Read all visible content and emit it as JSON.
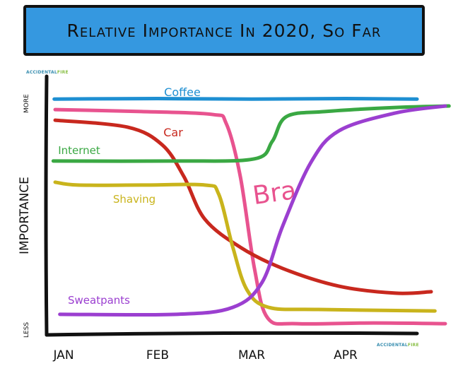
{
  "watermark": {
    "part1": "ACCIDENTAL",
    "part2": "FIRE"
  },
  "chart_data": {
    "type": "line",
    "title": "Relative Importance In 2020, So Far",
    "xlabel": "",
    "ylabel": "Importance",
    "y_tick_labels": {
      "top": "More",
      "bottom": "Less"
    },
    "x_ticks": [
      {
        "label": "Jan",
        "x": 0
      },
      {
        "label": "Feb",
        "x": 1
      },
      {
        "label": "Mar",
        "x": 2
      },
      {
        "label": "Apr",
        "x": 3
      }
    ],
    "xlim": [
      -0.2,
      4.2
    ],
    "ylim": [
      0,
      10
    ],
    "grid": false,
    "legend": "none (inline labels)",
    "series": [
      {
        "name": "Coffee",
        "color": "#1e8fd2",
        "points": [
          [
            -0.1,
            9.7
          ],
          [
            1,
            9.72
          ],
          [
            2,
            9.7
          ],
          [
            3,
            9.72
          ],
          [
            3.76,
            9.7
          ]
        ]
      },
      {
        "name": "Bra",
        "color": "#e8538f",
        "points": [
          [
            -0.09,
            9.26
          ],
          [
            0.83,
            9.18
          ],
          [
            1.58,
            9.06
          ],
          [
            1.73,
            8.68
          ],
          [
            1.88,
            6.47
          ],
          [
            2.03,
            2.65
          ],
          [
            2.17,
            0.59
          ],
          [
            2.48,
            0.35
          ],
          [
            3.3,
            0.38
          ],
          [
            4.06,
            0.35
          ]
        ]
      },
      {
        "name": "Car",
        "color": "#c8281e",
        "points": [
          [
            -0.09,
            8.82
          ],
          [
            0.68,
            8.53
          ],
          [
            1.05,
            7.79
          ],
          [
            1.28,
            6.47
          ],
          [
            1.5,
            4.71
          ],
          [
            1.88,
            3.53
          ],
          [
            2.33,
            2.65
          ],
          [
            2.93,
            1.91
          ],
          [
            3.53,
            1.62
          ],
          [
            3.91,
            1.68
          ]
        ]
      },
      {
        "name": "Internet",
        "color": "#3aa843",
        "points": [
          [
            -0.11,
            7.12
          ],
          [
            1.2,
            7.12
          ],
          [
            2.03,
            7.21
          ],
          [
            2.22,
            7.94
          ],
          [
            2.37,
            8.97
          ],
          [
            2.78,
            9.18
          ],
          [
            3.53,
            9.35
          ],
          [
            4.1,
            9.41
          ]
        ]
      },
      {
        "name": "Shaving",
        "color": "#c9b41c",
        "points": [
          [
            -0.09,
            6.24
          ],
          [
            0.15,
            6.12
          ],
          [
            0.83,
            6.12
          ],
          [
            1.5,
            6.12
          ],
          [
            1.65,
            5.74
          ],
          [
            1.8,
            3.53
          ],
          [
            1.95,
            1.76
          ],
          [
            2.18,
            1.03
          ],
          [
            2.71,
            0.94
          ],
          [
            3.95,
            0.88
          ]
        ]
      },
      {
        "name": "Sweatpants",
        "color": "#9b3fd0",
        "points": [
          [
            -0.04,
            0.74
          ],
          [
            1.2,
            0.74
          ],
          [
            1.8,
            1.03
          ],
          [
            2.11,
            2.06
          ],
          [
            2.33,
            4.41
          ],
          [
            2.63,
            7.06
          ],
          [
            2.93,
            8.38
          ],
          [
            3.53,
            9.12
          ],
          [
            4.06,
            9.41
          ]
        ]
      }
    ]
  }
}
